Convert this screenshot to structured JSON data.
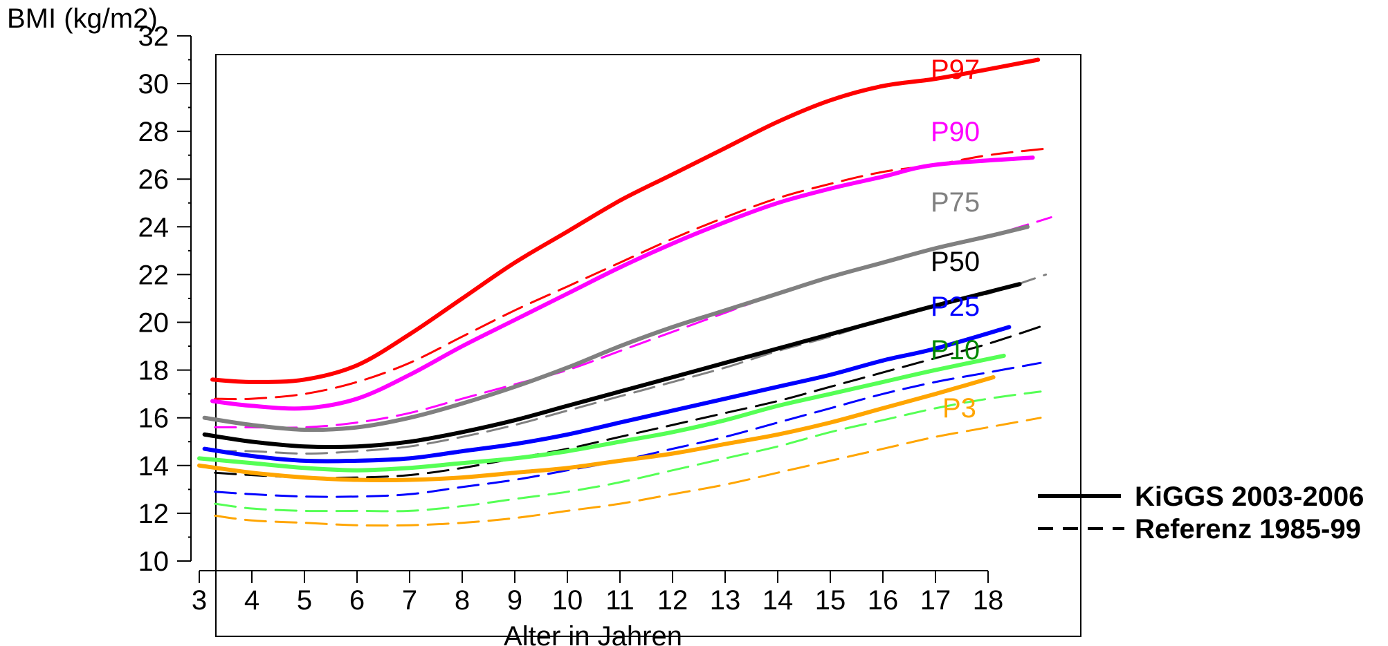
{
  "chart_data": {
    "type": "line",
    "ylabel": "BMI (kg/m2)",
    "xlabel": "Alter in Jahren",
    "xlim": [
      3,
      19.2
    ],
    "ylim": [
      10,
      32
    ],
    "x_ticks": [
      3,
      4,
      5,
      6,
      7,
      8,
      9,
      10,
      11,
      12,
      13,
      14,
      15,
      16,
      17,
      18
    ],
    "y_ticks": [
      10,
      12,
      14,
      16,
      18,
      20,
      22,
      24,
      26,
      28,
      30,
      32
    ],
    "y_minor_step": 1,
    "grid": false,
    "legend": {
      "position": "right",
      "entries": [
        {
          "label": "KiGGS 2003-2006",
          "style": "solid"
        },
        {
          "label": "Referenz 1985-99",
          "style": "dashed"
        }
      ]
    },
    "series": [
      {
        "percentile": "P97",
        "label": "P97",
        "color": "#ff0000",
        "style": "solid",
        "points": [
          [
            3.25,
            17.6
          ],
          [
            4,
            17.5
          ],
          [
            5,
            17.6
          ],
          [
            6,
            18.2
          ],
          [
            7,
            19.5
          ],
          [
            8,
            21.0
          ],
          [
            9,
            22.5
          ],
          [
            10,
            23.8
          ],
          [
            11,
            25.1
          ],
          [
            12,
            26.2
          ],
          [
            13,
            27.3
          ],
          [
            14,
            28.4
          ],
          [
            15,
            29.3
          ],
          [
            16,
            29.9
          ],
          [
            17,
            30.2
          ],
          [
            18,
            30.6
          ],
          [
            18.95,
            31.0
          ]
        ]
      },
      {
        "percentile": "P90",
        "label": "P90",
        "color": "#ff00ff",
        "style": "solid",
        "points": [
          [
            3.25,
            16.7
          ],
          [
            4,
            16.5
          ],
          [
            5,
            16.4
          ],
          [
            6,
            16.8
          ],
          [
            7,
            17.8
          ],
          [
            8,
            19.0
          ],
          [
            9,
            20.1
          ],
          [
            10,
            21.2
          ],
          [
            11,
            22.3
          ],
          [
            12,
            23.3
          ],
          [
            13,
            24.2
          ],
          [
            14,
            25.0
          ],
          [
            15,
            25.6
          ],
          [
            16,
            26.1
          ],
          [
            17,
            26.6
          ],
          [
            18.85,
            26.9
          ]
        ]
      },
      {
        "percentile": "P75",
        "label": "P75",
        "color": "#808080",
        "style": "solid",
        "points": [
          [
            3.1,
            16.0
          ],
          [
            4,
            15.7
          ],
          [
            5,
            15.5
          ],
          [
            6,
            15.6
          ],
          [
            7,
            16.0
          ],
          [
            8,
            16.6
          ],
          [
            9,
            17.3
          ],
          [
            10,
            18.1
          ],
          [
            11,
            19.0
          ],
          [
            12,
            19.8
          ],
          [
            13,
            20.5
          ],
          [
            14,
            21.2
          ],
          [
            15,
            21.9
          ],
          [
            16,
            22.5
          ],
          [
            17,
            23.1
          ],
          [
            18,
            23.6
          ],
          [
            18.75,
            24.0
          ]
        ]
      },
      {
        "percentile": "P50",
        "label": "P50",
        "color": "#000000",
        "style": "solid",
        "points": [
          [
            3.1,
            15.3
          ],
          [
            4,
            15.0
          ],
          [
            5,
            14.8
          ],
          [
            6,
            14.8
          ],
          [
            7,
            15.0
          ],
          [
            8,
            15.4
          ],
          [
            9,
            15.9
          ],
          [
            10,
            16.5
          ],
          [
            11,
            17.1
          ],
          [
            12,
            17.7
          ],
          [
            13,
            18.3
          ],
          [
            14,
            18.9
          ],
          [
            15,
            19.5
          ],
          [
            16,
            20.1
          ],
          [
            17,
            20.7
          ],
          [
            18.6,
            21.6
          ]
        ]
      },
      {
        "percentile": "P25",
        "label": "P25",
        "color": "#0000ff",
        "style": "solid",
        "points": [
          [
            3.1,
            14.7
          ],
          [
            4,
            14.4
          ],
          [
            5,
            14.2
          ],
          [
            6,
            14.2
          ],
          [
            7,
            14.3
          ],
          [
            8,
            14.6
          ],
          [
            9,
            14.9
          ],
          [
            10,
            15.3
          ],
          [
            11,
            15.8
          ],
          [
            12,
            16.3
          ],
          [
            13,
            16.8
          ],
          [
            14,
            17.3
          ],
          [
            15,
            17.8
          ],
          [
            16,
            18.4
          ],
          [
            17,
            18.9
          ],
          [
            18.4,
            19.8
          ]
        ]
      },
      {
        "percentile": "P10",
        "label": "P10",
        "color": "#55ff55",
        "style": "solid",
        "label_color": "#008800",
        "points": [
          [
            3,
            14.3
          ],
          [
            4,
            14.1
          ],
          [
            5,
            13.9
          ],
          [
            6,
            13.8
          ],
          [
            7,
            13.9
          ],
          [
            8,
            14.1
          ],
          [
            9,
            14.3
          ],
          [
            10,
            14.6
          ],
          [
            11,
            15.0
          ],
          [
            12,
            15.4
          ],
          [
            13,
            15.9
          ],
          [
            14,
            16.5
          ],
          [
            15,
            17.0
          ],
          [
            16,
            17.5
          ],
          [
            17,
            18.0
          ],
          [
            18.3,
            18.6
          ]
        ]
      },
      {
        "percentile": "P3",
        "label": "P3",
        "color": "#ffa500",
        "style": "solid",
        "points": [
          [
            3,
            14.0
          ],
          [
            4,
            13.7
          ],
          [
            5,
            13.5
          ],
          [
            6,
            13.4
          ],
          [
            7,
            13.4
          ],
          [
            8,
            13.5
          ],
          [
            9,
            13.7
          ],
          [
            10,
            13.9
          ],
          [
            11,
            14.2
          ],
          [
            12,
            14.5
          ],
          [
            13,
            14.9
          ],
          [
            14,
            15.3
          ],
          [
            15,
            15.8
          ],
          [
            16,
            16.4
          ],
          [
            17,
            17.0
          ],
          [
            18.1,
            17.7
          ]
        ]
      },
      {
        "percentile": "P97",
        "color": "#ff0000",
        "style": "dashed",
        "points": [
          [
            3.3,
            16.8
          ],
          [
            4,
            16.8
          ],
          [
            5,
            17.0
          ],
          [
            6,
            17.5
          ],
          [
            7,
            18.3
          ],
          [
            8,
            19.4
          ],
          [
            9,
            20.5
          ],
          [
            10,
            21.5
          ],
          [
            11,
            22.5
          ],
          [
            12,
            23.5
          ],
          [
            13,
            24.4
          ],
          [
            14,
            25.2
          ],
          [
            15,
            25.8
          ],
          [
            16,
            26.3
          ],
          [
            17,
            26.6
          ],
          [
            18,
            27.0
          ],
          [
            19.2,
            27.3
          ]
        ]
      },
      {
        "percentile": "P90",
        "color": "#ff00ff",
        "style": "dashed",
        "points": [
          [
            3.3,
            15.6
          ],
          [
            4,
            15.6
          ],
          [
            5,
            15.6
          ],
          [
            6,
            15.8
          ],
          [
            7,
            16.2
          ],
          [
            8,
            16.8
          ],
          [
            9,
            17.4
          ],
          [
            10,
            18.0
          ],
          [
            11,
            18.8
          ],
          [
            12,
            19.6
          ],
          [
            13,
            20.4
          ],
          [
            14,
            21.2
          ],
          [
            15,
            21.9
          ],
          [
            16,
            22.5
          ],
          [
            17,
            23.1
          ],
          [
            18,
            23.6
          ],
          [
            19.2,
            24.4
          ]
        ]
      },
      {
        "percentile": "P75",
        "color": "#808080",
        "style": "dashed",
        "points": [
          [
            3.3,
            14.6
          ],
          [
            4,
            14.6
          ],
          [
            5,
            14.5
          ],
          [
            6,
            14.6
          ],
          [
            7,
            14.8
          ],
          [
            8,
            15.2
          ],
          [
            9,
            15.7
          ],
          [
            10,
            16.3
          ],
          [
            11,
            16.9
          ],
          [
            12,
            17.5
          ],
          [
            13,
            18.1
          ],
          [
            14,
            18.8
          ],
          [
            15,
            19.4
          ],
          [
            16,
            20.1
          ],
          [
            17,
            20.7
          ],
          [
            18,
            21.2
          ],
          [
            19.1,
            22.0
          ]
        ]
      },
      {
        "percentile": "P50",
        "color": "#000000",
        "style": "dashed",
        "points": [
          [
            3.3,
            13.7
          ],
          [
            4,
            13.6
          ],
          [
            5,
            13.5
          ],
          [
            6,
            13.5
          ],
          [
            7,
            13.6
          ],
          [
            8,
            13.9
          ],
          [
            9,
            14.3
          ],
          [
            10,
            14.7
          ],
          [
            11,
            15.2
          ],
          [
            12,
            15.7
          ],
          [
            13,
            16.2
          ],
          [
            14,
            16.7
          ],
          [
            15,
            17.3
          ],
          [
            16,
            17.9
          ],
          [
            17,
            18.5
          ],
          [
            18,
            19.1
          ],
          [
            19.1,
            19.9
          ]
        ]
      },
      {
        "percentile": "P25",
        "color": "#0000ff",
        "style": "dashed",
        "points": [
          [
            3.3,
            12.9
          ],
          [
            4,
            12.8
          ],
          [
            5,
            12.7
          ],
          [
            6,
            12.7
          ],
          [
            7,
            12.8
          ],
          [
            8,
            13.1
          ],
          [
            9,
            13.4
          ],
          [
            10,
            13.8
          ],
          [
            11,
            14.2
          ],
          [
            12,
            14.7
          ],
          [
            13,
            15.2
          ],
          [
            14,
            15.8
          ],
          [
            15,
            16.4
          ],
          [
            16,
            17.0
          ],
          [
            17,
            17.5
          ],
          [
            18,
            17.9
          ],
          [
            19.0,
            18.3
          ]
        ]
      },
      {
        "percentile": "P10",
        "color": "#55ff55",
        "style": "dashed",
        "points": [
          [
            3.3,
            12.4
          ],
          [
            4,
            12.2
          ],
          [
            5,
            12.1
          ],
          [
            6,
            12.1
          ],
          [
            7,
            12.1
          ],
          [
            8,
            12.3
          ],
          [
            9,
            12.6
          ],
          [
            10,
            12.9
          ],
          [
            11,
            13.3
          ],
          [
            12,
            13.8
          ],
          [
            13,
            14.3
          ],
          [
            14,
            14.8
          ],
          [
            15,
            15.4
          ],
          [
            16,
            15.9
          ],
          [
            17,
            16.4
          ],
          [
            18,
            16.8
          ],
          [
            19.0,
            17.1
          ]
        ]
      },
      {
        "percentile": "P3",
        "color": "#ffa500",
        "style": "dashed",
        "points": [
          [
            3.3,
            11.9
          ],
          [
            4,
            11.7
          ],
          [
            5,
            11.6
          ],
          [
            6,
            11.5
          ],
          [
            7,
            11.5
          ],
          [
            8,
            11.6
          ],
          [
            9,
            11.8
          ],
          [
            10,
            12.1
          ],
          [
            11,
            12.4
          ],
          [
            12,
            12.8
          ],
          [
            13,
            13.2
          ],
          [
            14,
            13.7
          ],
          [
            15,
            14.2
          ],
          [
            16,
            14.7
          ],
          [
            17,
            15.2
          ],
          [
            18,
            15.6
          ],
          [
            19.0,
            16.0
          ]
        ]
      }
    ]
  }
}
